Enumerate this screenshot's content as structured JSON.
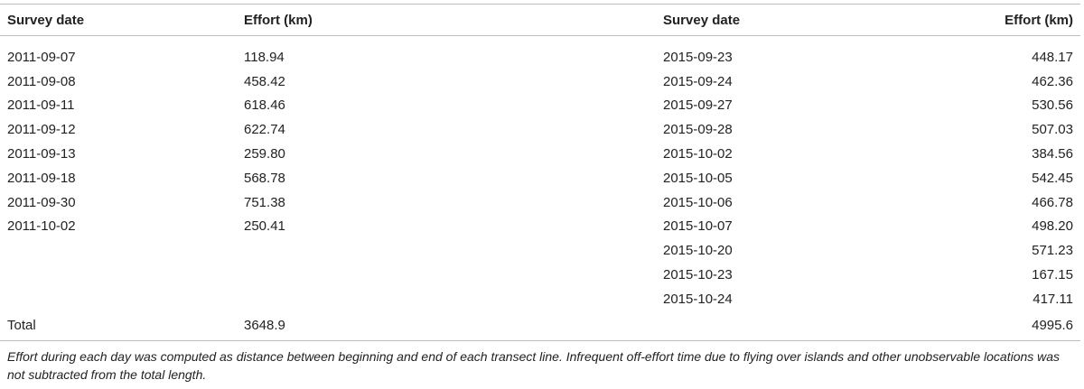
{
  "table": {
    "headers": {
      "date_left": "Survey date",
      "effort_left": "Effort (km)",
      "date_right": "Survey date",
      "effort_right": "Effort (km)"
    },
    "rows": [
      {
        "d1": "2011-09-07",
        "e1": "118.94",
        "d2": "2015-09-23",
        "e2": "448.17"
      },
      {
        "d1": "2011-09-08",
        "e1": "458.42",
        "d2": "2015-09-24",
        "e2": "462.36"
      },
      {
        "d1": "2011-09-11",
        "e1": "618.46",
        "d2": "2015-09-27",
        "e2": "530.56"
      },
      {
        "d1": "2011-09-12",
        "e1": "622.74",
        "d2": "2015-09-28",
        "e2": "507.03"
      },
      {
        "d1": "2011-09-13",
        "e1": "259.80",
        "d2": "2015-10-02",
        "e2": "384.56"
      },
      {
        "d1": "2011-09-18",
        "e1": "568.78",
        "d2": "2015-10-05",
        "e2": "542.45"
      },
      {
        "d1": "2011-09-30",
        "e1": "751.38",
        "d2": "2015-10-06",
        "e2": "466.78"
      },
      {
        "d1": "2011-10-02",
        "e1": "250.41",
        "d2": "2015-10-07",
        "e2": "498.20"
      },
      {
        "d1": "",
        "e1": "",
        "d2": "2015-10-20",
        "e2": "571.23"
      },
      {
        "d1": "",
        "e1": "",
        "d2": "2015-10-23",
        "e2": "167.15"
      },
      {
        "d1": "",
        "e1": "",
        "d2": "2015-10-24",
        "e2": "417.11"
      }
    ],
    "total": {
      "label": "Total",
      "left": "3648.9",
      "right": "4995.6"
    }
  },
  "footnote": "Effort during each day was computed as distance between beginning and end of each transect line. Infrequent off-effort time due to flying over islands and other unobservable locations was not subtracted from the total length."
}
